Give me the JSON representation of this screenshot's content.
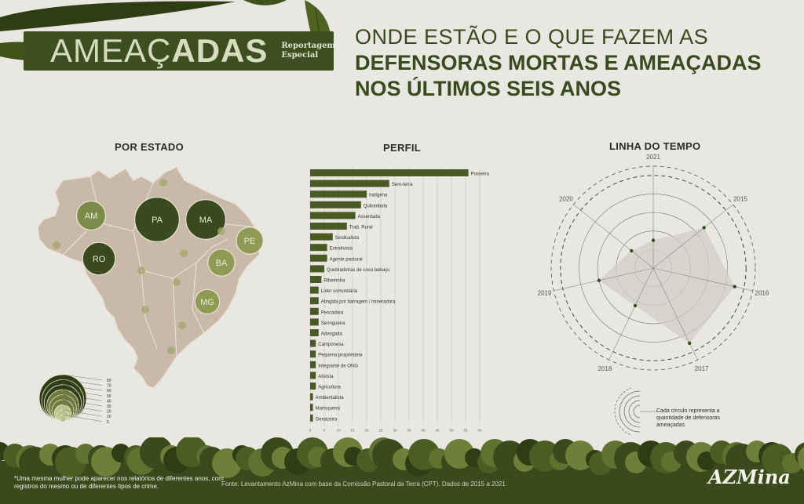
{
  "header": {
    "banner_title": "AMEAÇADAS",
    "banner_title_light": "AMEAÇ",
    "banner_title_bold": "ADAS",
    "banner_subtitle_1": "Reportagem",
    "banner_subtitle_2": "Especial",
    "headline_line1": "ONDE ESTÃO E O QUE FAZEM AS",
    "headline_line2": "DEFENSORAS MORTAS E AMEAÇADAS",
    "headline_line3": "NOS ÚLTIMOS SEIS ANOS"
  },
  "colors": {
    "dark_green": "#3d4e20",
    "bar_green": "#4a5a24",
    "map_fill": "#c9b9a8",
    "bubble_light": "#8b9658"
  },
  "chart_data": [
    {
      "type": "bubble-map",
      "title": "POR ESTADO",
      "states": [
        {
          "label": "PA",
          "value": 80
        },
        {
          "label": "MA",
          "value": 60
        },
        {
          "label": "AM",
          "value": 25
        },
        {
          "label": "RO",
          "value": 35
        },
        {
          "label": "PE",
          "value": 20
        },
        {
          "label": "BA",
          "value": 20
        },
        {
          "label": "MG",
          "value": 15
        }
      ],
      "legend_values": [
        "80",
        "70",
        "60",
        "50",
        "40",
        "30",
        "20",
        "10",
        "5"
      ]
    },
    {
      "type": "bar",
      "orientation": "horizontal",
      "title": "PERFIL",
      "categories": [
        "Posseira",
        "Sem-terra",
        "Indígena",
        "Quilombola",
        "Assentada",
        "Trab. Rural",
        "Sindicalista",
        "Extrativista",
        "Agente pastoral",
        "Quebradeiras de coco babaçu",
        "Ribeirinha",
        "Líder comunitária",
        "Atingida por barragem / mineradora",
        "Pescadora",
        "Seringueira",
        "Advogada",
        "Camponesa",
        "Pequena proprietária",
        "Integrante de ONG",
        "Ativista",
        "Agricultora",
        "Ambientalista",
        "Marisqueira",
        "Geraizeira"
      ],
      "values": [
        56,
        28,
        20,
        18,
        16,
        13,
        8,
        6,
        6,
        5,
        4,
        3,
        3,
        3,
        3,
        3,
        2,
        2,
        2,
        2,
        2,
        1,
        1,
        1
      ],
      "xticks": [
        "0",
        "5",
        "10",
        "15",
        "20",
        "25",
        "30",
        "35",
        "40",
        "45",
        "50",
        "55",
        "60"
      ],
      "xlim": [
        0,
        60
      ],
      "grid": true
    },
    {
      "type": "radar",
      "title": "LINHA DO TEMPO",
      "categories": [
        "2021",
        "2015",
        "2016",
        "2017",
        "2018",
        "2019",
        "2020"
      ],
      "values": [
        30,
        70,
        90,
        90,
        45,
        60,
        30
      ],
      "rmax": 110,
      "rings": [
        20,
        40,
        60,
        80,
        100
      ],
      "legend_note": "Cada círculo representa a quantidade de defensoras ameaçadas"
    }
  ],
  "footer": {
    "note": "*Uma mesma mulher pode aparecer nos relatórios de diferentes anos, com registros do mesmo ou de diferentes tipos de crime.",
    "source": "Fonte: Levantamento AzMina com base da Comissão Pastoral da Terra (CPT). Dados de 2015 a 2021",
    "logo": "AZMina"
  }
}
